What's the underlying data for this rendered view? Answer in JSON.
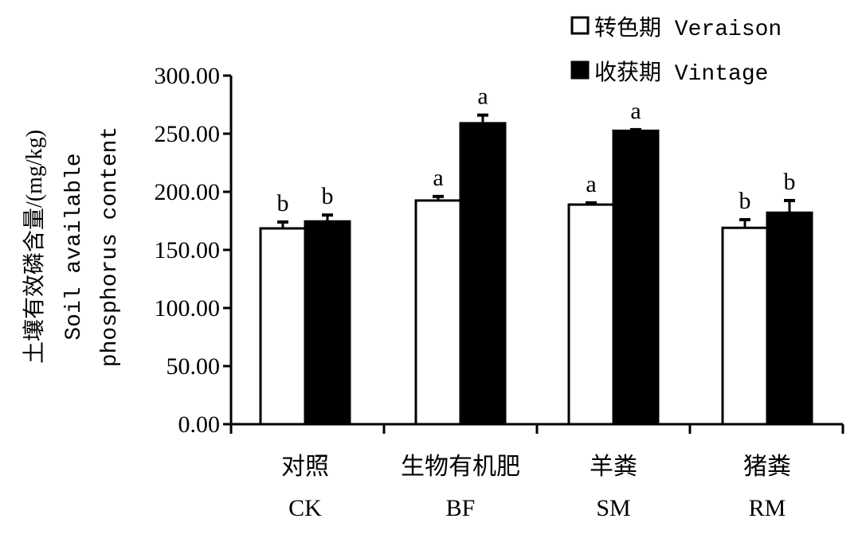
{
  "chart_data": {
    "type": "bar",
    "ylabel_lines": [
      "土壤有效磷含量/(mg/kg)",
      "Soil available",
      "phosphorus content"
    ],
    "categories": [
      {
        "cn": "对照",
        "en": "CK"
      },
      {
        "cn": "生物有机肥",
        "en": "BF"
      },
      {
        "cn": "羊粪",
        "en": "SM"
      },
      {
        "cn": "猪粪",
        "en": "RM"
      }
    ],
    "series": [
      {
        "name": "转色期 Veraison",
        "color": "#ffffff",
        "values": [
          168.5,
          192.5,
          189,
          169
        ],
        "errors": [
          5.5,
          3.5,
          1.5,
          7
        ],
        "labels": [
          "b",
          "a",
          "a",
          "b"
        ]
      },
      {
        "name": "收获期 Vintage",
        "color": "#000000",
        "values": [
          174.5,
          259,
          252.5,
          182
        ],
        "errors": [
          5.5,
          7,
          1,
          10.5
        ],
        "labels": [
          "b",
          "a",
          "a",
          "b"
        ]
      }
    ],
    "ylim": [
      0,
      300
    ],
    "yticks": [
      "0.00",
      "50.00",
      "100.00",
      "150.00",
      "200.00",
      "250.00",
      "300.00"
    ],
    "legend_position": "top-right",
    "grid": false
  }
}
